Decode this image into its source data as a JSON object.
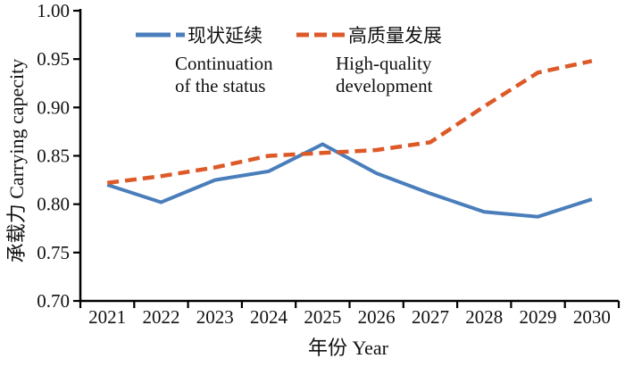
{
  "chart_data": {
    "type": "line",
    "title": "",
    "xlabel": "年份 Year",
    "ylabel": "承载力 Carrying capecity",
    "x": [
      "2021",
      "2022",
      "2023",
      "2024",
      "2025",
      "2026",
      "2027",
      "2028",
      "2029",
      "2030"
    ],
    "ylim": [
      0.7,
      1.0
    ],
    "yticks": [
      0.7,
      0.75,
      0.8,
      0.85,
      0.9,
      0.95,
      1.0
    ],
    "ytick_labels": [
      "0.70",
      "0.75",
      "0.80",
      "0.85",
      "0.90",
      "0.95",
      "1.00"
    ],
    "grid": false,
    "legend_position": "top-inside",
    "axis_color": "#000000",
    "series": [
      {
        "name_cn": "现状延续",
        "name_en_lines": [
          "Continuation",
          "of the status"
        ],
        "color": "#4a7ebb",
        "line_style": "solid",
        "legend_marker": "long-short-dash",
        "values": [
          0.82,
          0.802,
          0.825,
          0.834,
          0.862,
          0.832,
          0.811,
          0.792,
          0.787,
          0.805
        ]
      },
      {
        "name_cn": "高质量发展",
        "name_en_lines": [
          "High-quality",
          "development"
        ],
        "color": "#dd5a28",
        "line_style": "dashed",
        "legend_marker": "short-dashes",
        "values": [
          0.822,
          0.829,
          0.838,
          0.85,
          0.853,
          0.856,
          0.864,
          0.901,
          0.936,
          0.948
        ]
      }
    ]
  }
}
